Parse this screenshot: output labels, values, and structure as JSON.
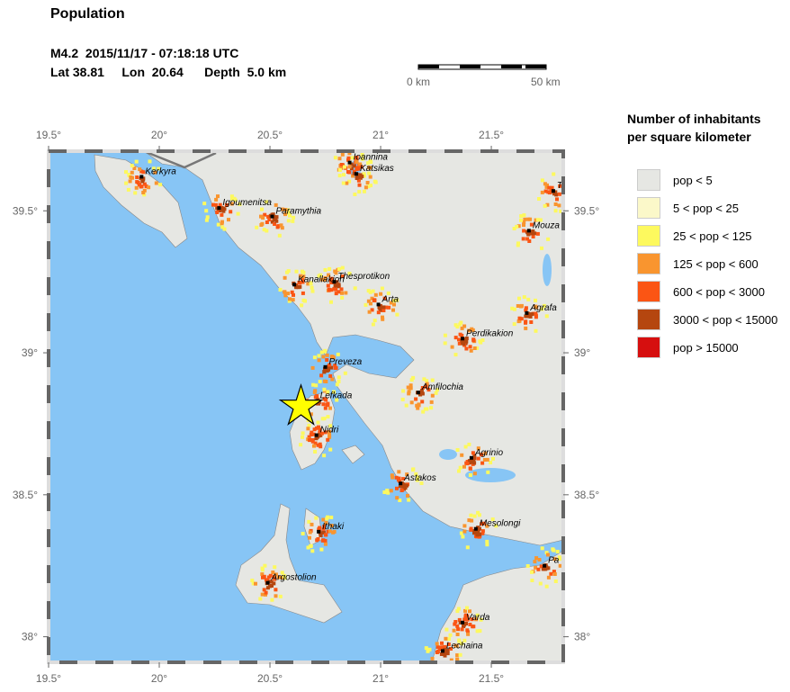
{
  "header": {
    "title": "Population",
    "event_line": "M4.2  2015/11/17 - 07:18:18 UTC",
    "location_line": "Lat 38.81     Lon  20.64      Depth  5.0 km"
  },
  "scale_bar": {
    "start_label": "0 km",
    "end_label": "50 km",
    "length_km": 50
  },
  "legend": {
    "title_line1": "Number of inhabitants",
    "title_line2": "per square kilometer",
    "items": [
      {
        "label": "pop < 5",
        "color": "#e6e7e3"
      },
      {
        "label": "5 < pop < 25",
        "color": "#fbf8c9"
      },
      {
        "label": "25 < pop < 125",
        "color": "#fdf95e"
      },
      {
        "label": "125 < pop < 600",
        "color": "#f9952f"
      },
      {
        "label": "600 < pop < 3000",
        "color": "#fb5514"
      },
      {
        "label": "3000 < pop < 15000",
        "color": "#b5460f"
      },
      {
        "label": "pop > 15000",
        "color": "#d60f0f"
      }
    ]
  },
  "map": {
    "lon_range": [
      19.5,
      21.825
    ],
    "lat_range": [
      37.91,
      39.71
    ],
    "lon_ticks": [
      "19.5°",
      "20°",
      "20.5°",
      "21°",
      "21.5°"
    ],
    "lon_tick_values": [
      19.5,
      20,
      20.5,
      21,
      21.5
    ],
    "lat_ticks": [
      "39.5°",
      "39°",
      "38.5°",
      "38°"
    ],
    "lat_tick_values": [
      39.5,
      39,
      38.5,
      38
    ],
    "colors": {
      "water": "#87c5f5",
      "land": "#e6e7e3",
      "epicenter": "#ffff00"
    },
    "epicenter": {
      "lon": 20.64,
      "lat": 38.81
    },
    "cities": [
      {
        "name": "Kerkyra",
        "lon": 19.92,
        "lat": 39.62
      },
      {
        "name": "Igoumenitsa",
        "lon": 20.27,
        "lat": 39.51
      },
      {
        "name": "Paramythia",
        "lon": 20.51,
        "lat": 39.48
      },
      {
        "name": "Ioannina",
        "lon": 20.86,
        "lat": 39.67
      },
      {
        "name": "Katsikas",
        "lon": 20.89,
        "lat": 39.63
      },
      {
        "name": "Kanallakion",
        "lon": 20.61,
        "lat": 39.24
      },
      {
        "name": "Thesprotikon",
        "lon": 20.79,
        "lat": 39.25
      },
      {
        "name": "Arta",
        "lon": 20.99,
        "lat": 39.17
      },
      {
        "name": "Perdikakion",
        "lon": 21.37,
        "lat": 39.05
      },
      {
        "name": "Agrafa",
        "lon": 21.66,
        "lat": 39.14
      },
      {
        "name": "Mouza",
        "lon": 21.67,
        "lat": 39.43
      },
      {
        "name": "T",
        "lon": 21.78,
        "lat": 39.57
      },
      {
        "name": "Preveza",
        "lon": 20.75,
        "lat": 38.95
      },
      {
        "name": "Lefkada",
        "lon": 20.71,
        "lat": 38.83
      },
      {
        "name": "Nidri",
        "lon": 20.71,
        "lat": 38.71
      },
      {
        "name": "Amfilochia",
        "lon": 21.17,
        "lat": 38.86
      },
      {
        "name": "Agrinio",
        "lon": 21.41,
        "lat": 38.63
      },
      {
        "name": "Astakos",
        "lon": 21.09,
        "lat": 38.54
      },
      {
        "name": "Mesolongi",
        "lon": 21.43,
        "lat": 38.38
      },
      {
        "name": "Ithaki",
        "lon": 20.72,
        "lat": 38.37
      },
      {
        "name": "Argostolion",
        "lon": 20.49,
        "lat": 38.19
      },
      {
        "name": "Pa",
        "lon": 21.74,
        "lat": 38.25
      },
      {
        "name": "Varda",
        "lon": 21.37,
        "lat": 38.05
      },
      {
        "name": "Lechaina",
        "lon": 21.28,
        "lat": 37.95
      }
    ]
  }
}
